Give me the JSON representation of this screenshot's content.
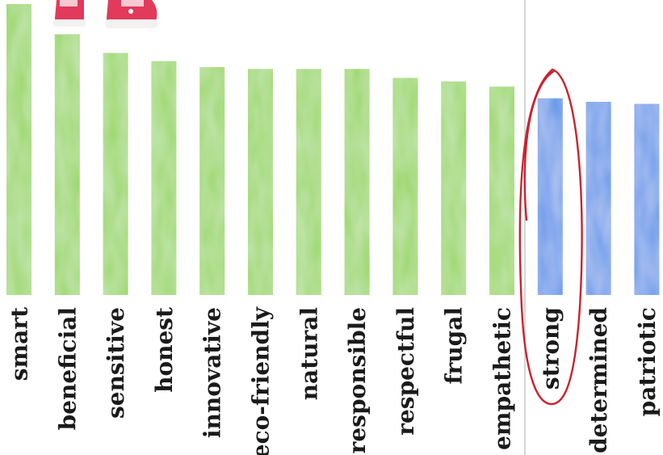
{
  "chart_data": {
    "type": "bar",
    "title": "",
    "xlabel": "",
    "ylabel": "",
    "categories": [
      "smart",
      "beneficial",
      "sensitive",
      "honest",
      "innovative",
      "eco-friendly",
      "natural",
      "responsible",
      "respectful",
      "frugal",
      "empathetic",
      "strong",
      "determined",
      "patriotic"
    ],
    "values": [
      100,
      89.6,
      83.2,
      80.4,
      78.3,
      77.7,
      77.7,
      77.7,
      74.6,
      73.4,
      71.6,
      67.6,
      66.4,
      65.7
    ],
    "groups": [
      "green",
      "green",
      "green",
      "green",
      "green",
      "green",
      "green",
      "green",
      "green",
      "green",
      "green",
      "blue",
      "blue",
      "blue"
    ],
    "ylim": [
      0,
      100
    ],
    "highlighted_category": "strong",
    "colors": {
      "green": "#94d65a",
      "blue": "#5b93ea",
      "divider": "#c9c9c9",
      "highlight_ellipse": "#c8232f",
      "shoe": "#e23a5a"
    },
    "grid": false,
    "legend": "none",
    "decorations": [
      "pink-sneakers-illustration"
    ]
  }
}
